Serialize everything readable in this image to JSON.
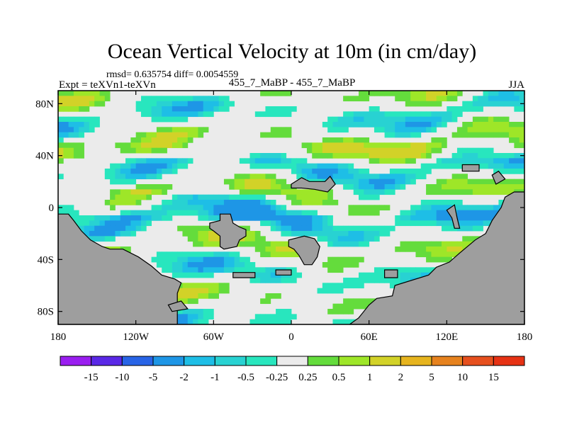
{
  "chart_data": {
    "type": "heatmap",
    "title": "Ocean Vertical Velocity at 10m (in cm/day)",
    "stats": "rmsd= 0.635754 diff= 0.0054559",
    "left_label": "Expt = teXVn1-teXVn",
    "center_label": "455_7_MaBP - 455_7_MaBP",
    "right_label": "JJA",
    "x_ticks": [
      {
        "value": -180,
        "label": "180"
      },
      {
        "value": -120,
        "label": "120W"
      },
      {
        "value": -60,
        "label": "60W"
      },
      {
        "value": 0,
        "label": "0"
      },
      {
        "value": 60,
        "label": "60E"
      },
      {
        "value": 120,
        "label": "120E"
      },
      {
        "value": 180,
        "label": "180"
      }
    ],
    "y_ticks": [
      {
        "value": 80,
        "label": "80N"
      },
      {
        "value": 40,
        "label": "40N"
      },
      {
        "value": 0,
        "label": "0"
      },
      {
        "value": -40,
        "label": "40S"
      },
      {
        "value": -80,
        "label": "80S"
      }
    ],
    "xlim": [
      -180,
      180
    ],
    "ylim": [
      -90,
      90
    ],
    "land_color": "#9e9e9e",
    "colorbar": {
      "levels": [
        "-15",
        "-10",
        "-5",
        "-2",
        "-1",
        "-0.5",
        "-0.25",
        "0.25",
        "0.5",
        "1",
        "2",
        "5",
        "10",
        "15"
      ],
      "colors": [
        "#9a1ef0",
        "#5a28e6",
        "#2864e6",
        "#1e96e6",
        "#1ebee6",
        "#28d2d2",
        "#28e6be",
        "#ebebeb",
        "#64dc3c",
        "#9ee628",
        "#d2d228",
        "#e6b41e",
        "#e6821e",
        "#e6501e",
        "#e63214"
      ]
    }
  }
}
